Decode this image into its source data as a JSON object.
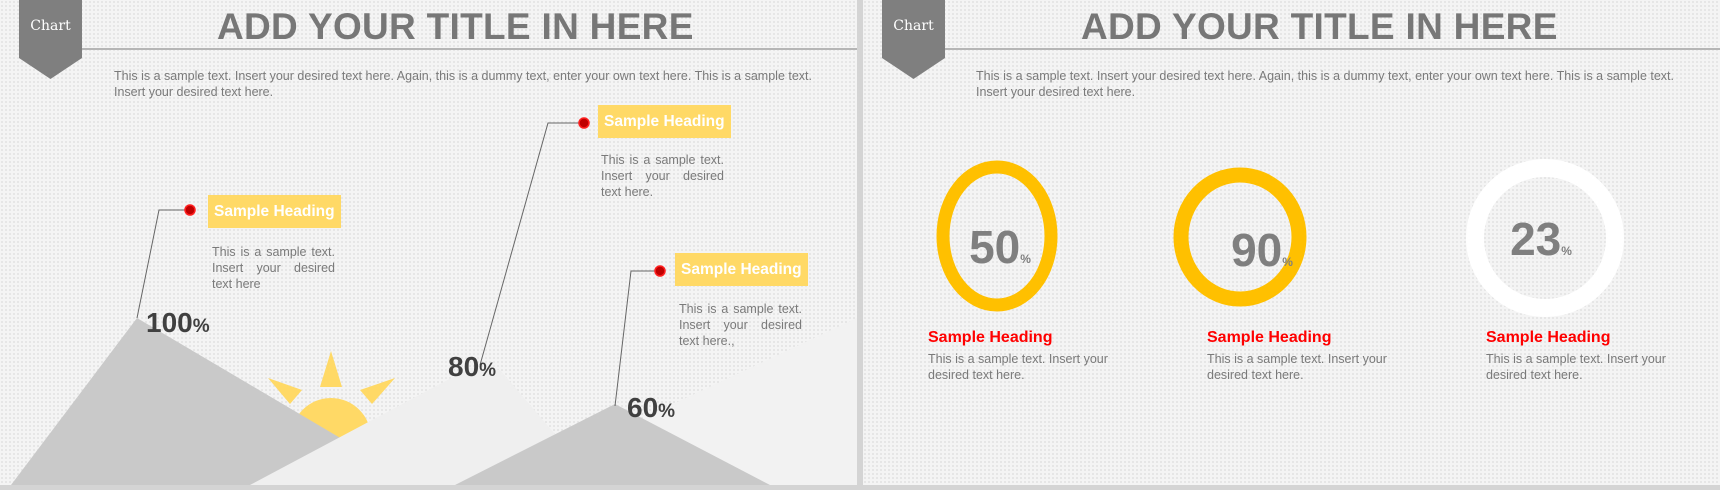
{
  "colors": {
    "accent": "#ffc000",
    "heading_box": "#ffd966",
    "ribbon": "#7f7f7f",
    "heading_red": "#ff0000",
    "mountain_dark": "#c9c9c9",
    "mountain_light": "#f2f2f2",
    "dot": "#c00000"
  },
  "slide1": {
    "ribbon": "Chart",
    "title": "ADD YOUR TITLE IN HERE",
    "intro": "This is a sample text. Insert your desired text here. Again, this is a dummy text, enter your own text here. This is a sample text. Insert your desired text here.",
    "callouts": [
      {
        "heading": "Sample Heading",
        "text": "This is a sample text. Insert your desired text here",
        "value": "100",
        "unit": "%"
      },
      {
        "heading": "Sample Heading",
        "text": "This is a sample text. Insert your desired text here.",
        "value": "80",
        "unit": "%"
      },
      {
        "heading": "Sample Heading",
        "text": "This is a sample text. Insert your desired text here.,",
        "value": "60",
        "unit": "%"
      }
    ]
  },
  "slide2": {
    "ribbon": "Chart",
    "title": "ADD YOUR TITLE IN HERE",
    "intro": "This is a sample text. Insert your desired text here. Again, this is a dummy text, enter your own text here. This is a sample text. Insert your desired text here.",
    "rings": [
      {
        "value": "50",
        "unit": "%",
        "heading": "Sample Heading",
        "text": "This is a sample text. Insert your desired text here.",
        "ring_color": "#ffc000"
      },
      {
        "value": "90",
        "unit": "%",
        "heading": "Sample Heading",
        "text": "This is a sample text. Insert your desired text here.",
        "ring_color": "#ffc000"
      },
      {
        "value": "23",
        "unit": "%",
        "heading": "Sample Heading",
        "text": "This is a sample text. Insert your desired text here.",
        "ring_color": "#ffffff"
      }
    ]
  }
}
